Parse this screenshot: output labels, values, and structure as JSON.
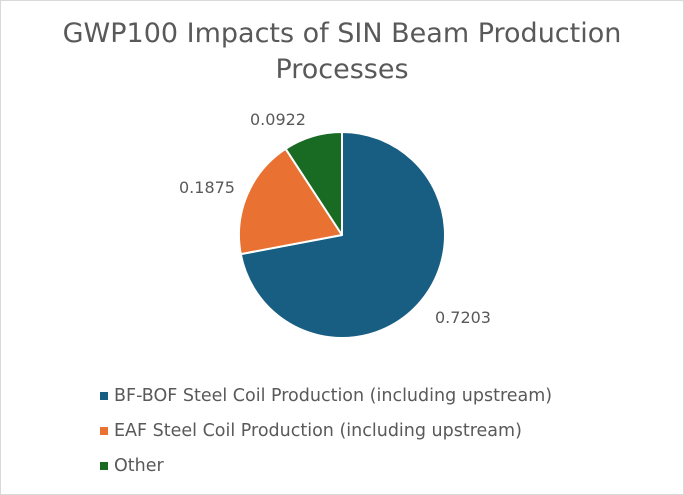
{
  "chart_data": {
    "type": "pie",
    "title": "GWP100 Impacts of SIN Beam Production Processes",
    "categories": [
      "BF-BOF Steel Coil Production (including upstream)",
      "EAF Steel Coil Production (including upstream)",
      "Other"
    ],
    "values": [
      0.7203,
      0.1875,
      0.0922
    ],
    "data_labels": [
      "0.7203",
      "0.1875",
      "0.0922"
    ],
    "colors": [
      "#175e82",
      "#e97132",
      "#196b24"
    ],
    "legend_placement": "bottom",
    "start_angle_deg": 0,
    "direction": "clockwise"
  }
}
